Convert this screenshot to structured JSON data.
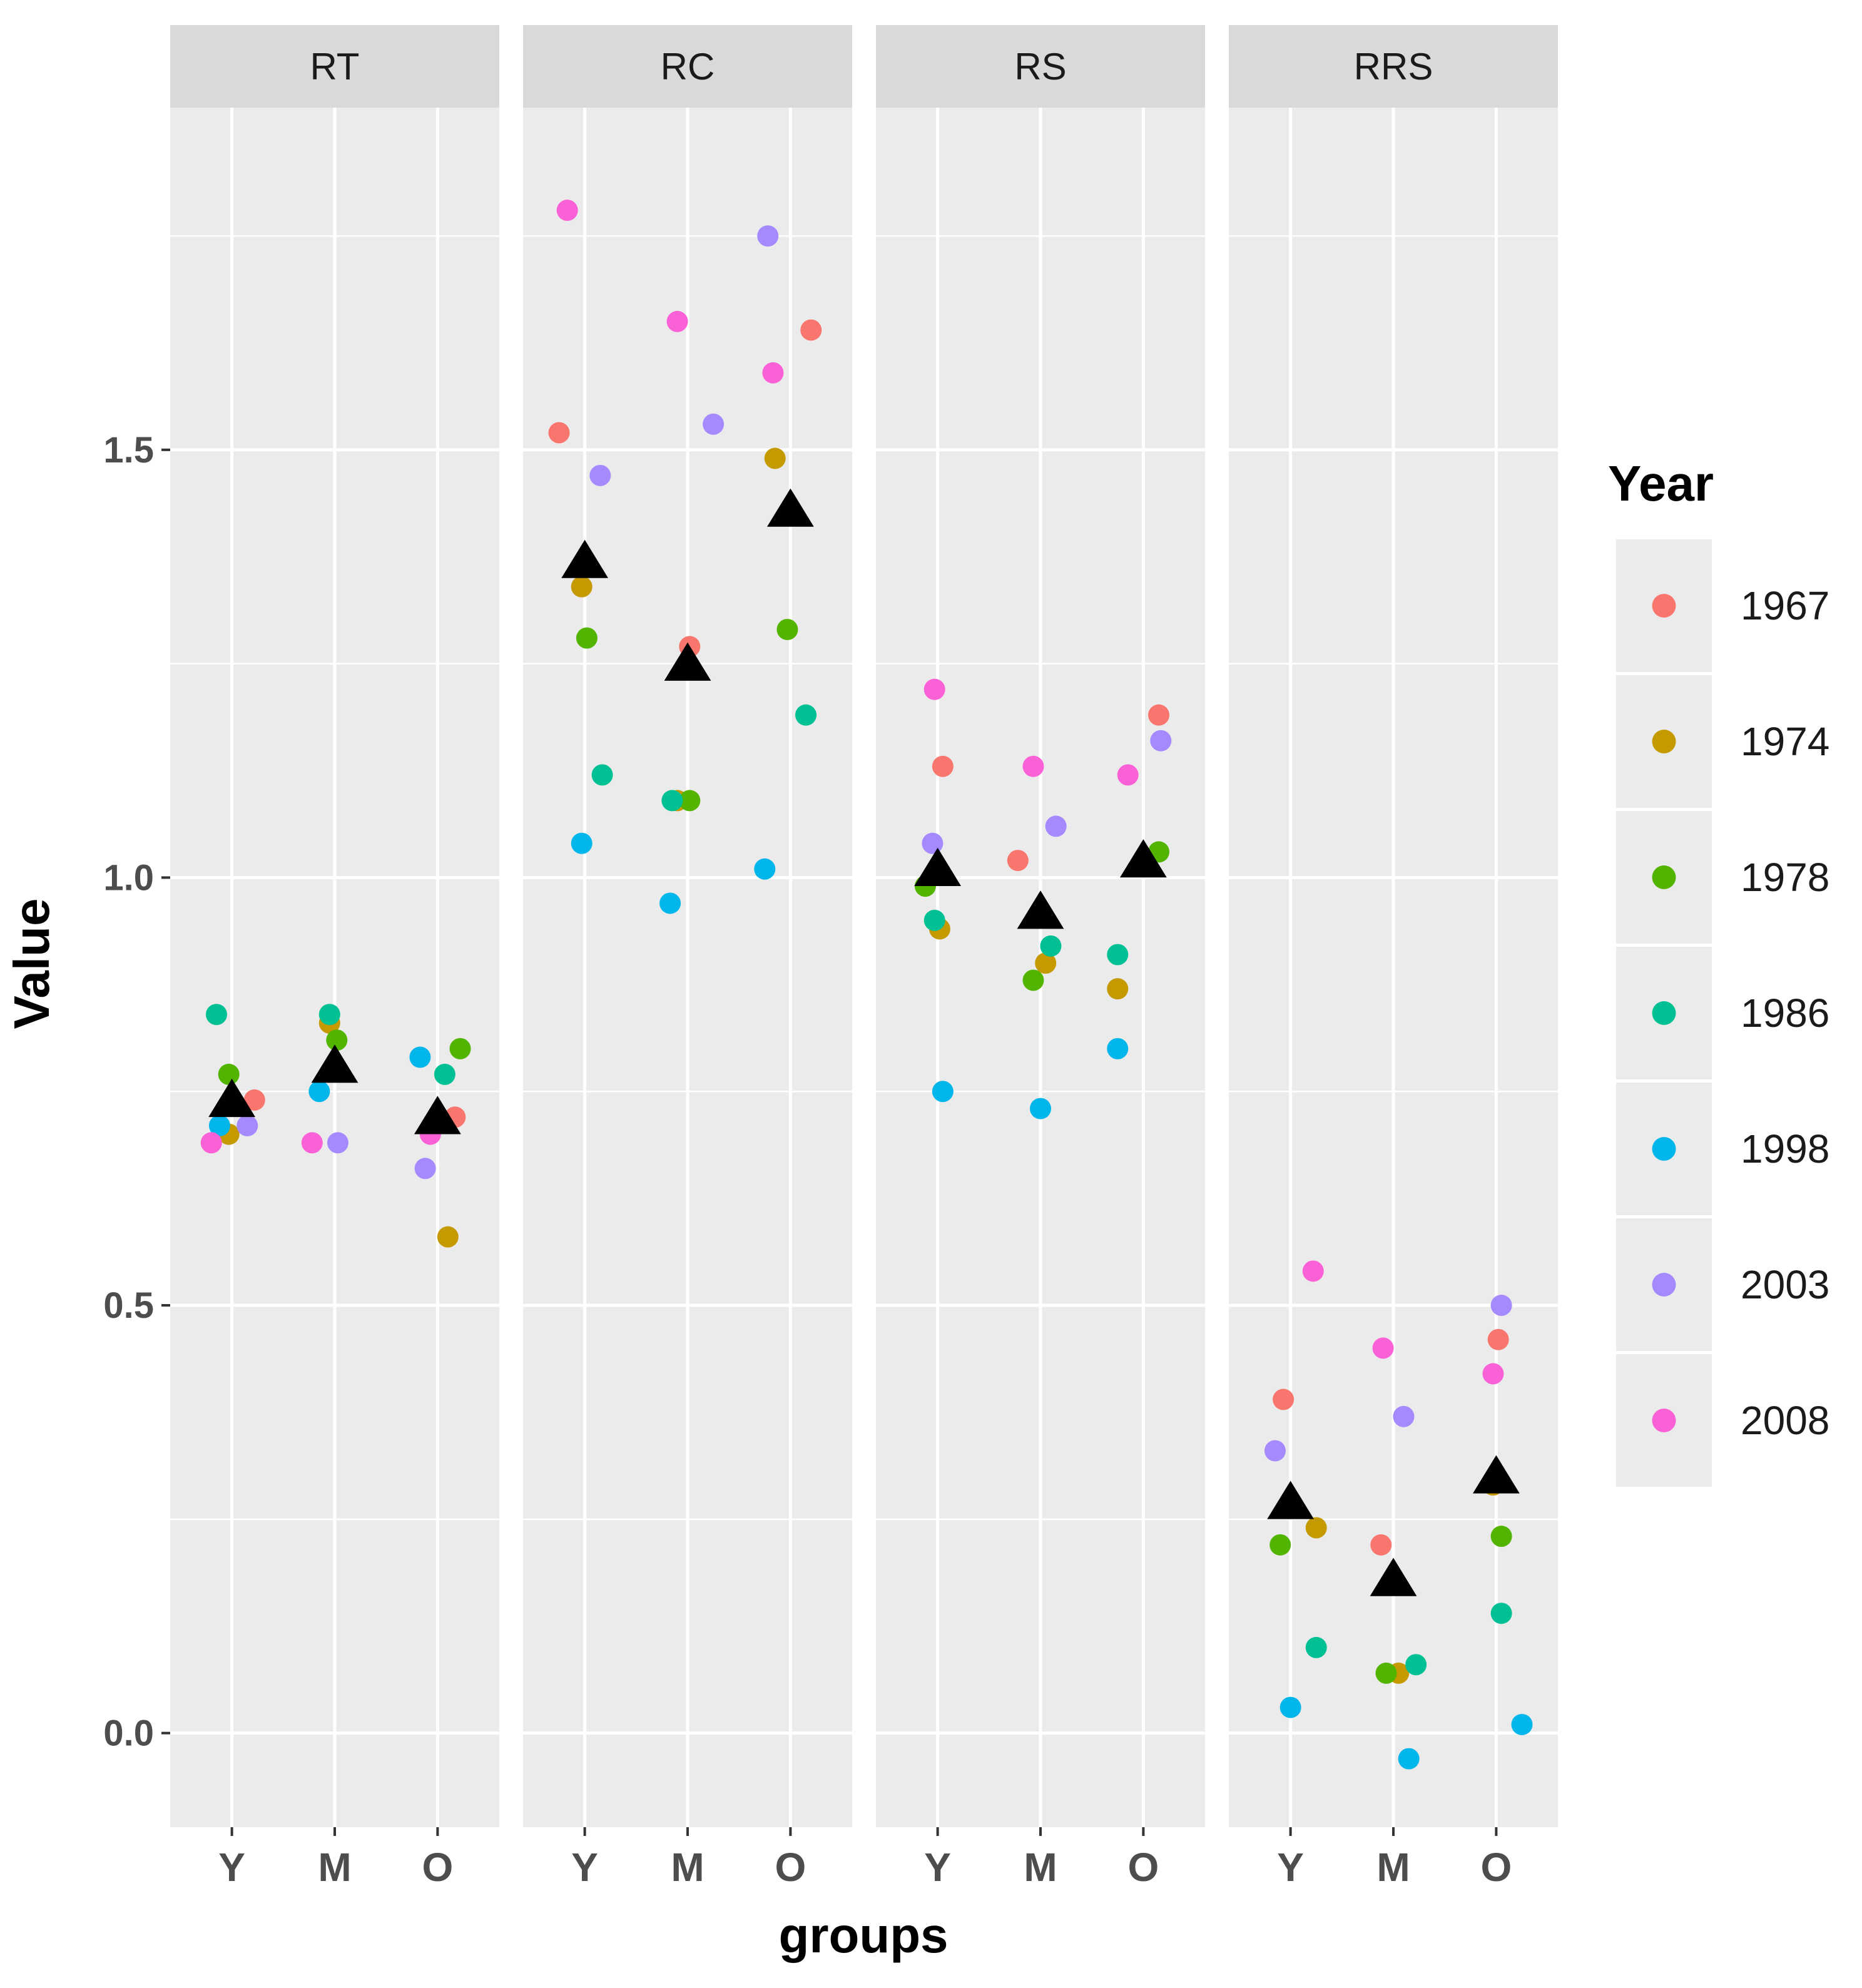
{
  "chart_data": {
    "type": "scatter",
    "facets": [
      "RT",
      "RC",
      "RS",
      "RRS"
    ],
    "x_categories": [
      "Y",
      "M",
      "O"
    ],
    "xlabel": "groups",
    "ylabel": "Value",
    "ylim": [
      -0.11,
      1.9
    ],
    "y_ticks": [
      0.0,
      0.5,
      1.0,
      1.5
    ],
    "y_tick_labels": [
      "0.0",
      "0.5",
      "1.0",
      "1.5"
    ],
    "grid": true,
    "legend": {
      "title": "Year",
      "position": "right",
      "entries": [
        {
          "name": "1967",
          "color": "#F8766D"
        },
        {
          "name": "1974",
          "color": "#C49A00"
        },
        {
          "name": "1978",
          "color": "#53B400"
        },
        {
          "name": "1986",
          "color": "#00C094"
        },
        {
          "name": "1998",
          "color": "#00B6EB"
        },
        {
          "name": "2003",
          "color": "#A58AFF"
        },
        {
          "name": "2008",
          "color": "#FB61D7"
        }
      ]
    },
    "points": {
      "RT": {
        "Y": [
          {
            "year": "1967",
            "x": 0.22,
            "y": 0.74
          },
          {
            "year": "1974",
            "x": -0.03,
            "y": 0.7
          },
          {
            "year": "1978",
            "x": -0.03,
            "y": 0.77
          },
          {
            "year": "1986",
            "x": -0.15,
            "y": 0.84
          },
          {
            "year": "1998",
            "x": -0.12,
            "y": 0.71
          },
          {
            "year": "2003",
            "x": 0.15,
            "y": 0.71
          },
          {
            "year": "2008",
            "x": -0.2,
            "y": 0.69
          }
        ],
        "M": [
          {
            "year": "1974",
            "x": -0.05,
            "y": 0.83
          },
          {
            "year": "1978",
            "x": 0.02,
            "y": 0.81
          },
          {
            "year": "1986",
            "x": -0.05,
            "y": 0.84
          },
          {
            "year": "1998",
            "x": -0.15,
            "y": 0.75
          },
          {
            "year": "2003",
            "x": 0.03,
            "y": 0.69
          },
          {
            "year": "2008",
            "x": -0.22,
            "y": 0.69
          }
        ],
        "O": [
          {
            "year": "1967",
            "x": 0.17,
            "y": 0.72
          },
          {
            "year": "1974",
            "x": 0.1,
            "y": 0.58
          },
          {
            "year": "1978",
            "x": 0.22,
            "y": 0.8
          },
          {
            "year": "1986",
            "x": 0.07,
            "y": 0.77
          },
          {
            "year": "1998",
            "x": -0.17,
            "y": 0.79
          },
          {
            "year": "2003",
            "x": -0.12,
            "y": 0.66
          },
          {
            "year": "2008",
            "x": -0.07,
            "y": 0.7
          }
        ]
      },
      "RC": {
        "Y": [
          {
            "year": "1967",
            "x": -0.25,
            "y": 1.52
          },
          {
            "year": "1974",
            "x": -0.03,
            "y": 1.34
          },
          {
            "year": "1978",
            "x": 0.02,
            "y": 1.28
          },
          {
            "year": "1986",
            "x": 0.17,
            "y": 1.12
          },
          {
            "year": "1998",
            "x": -0.03,
            "y": 1.04
          },
          {
            "year": "2003",
            "x": 0.15,
            "y": 1.47
          },
          {
            "year": "2008",
            "x": -0.17,
            "y": 1.78
          }
        ],
        "M": [
          {
            "year": "1967",
            "x": 0.02,
            "y": 1.27
          },
          {
            "year": "1974",
            "x": -0.1,
            "y": 1.09
          },
          {
            "year": "1978",
            "x": 0.02,
            "y": 1.09
          },
          {
            "year": "1986",
            "x": -0.15,
            "y": 1.09
          },
          {
            "year": "1998",
            "x": -0.17,
            "y": 0.97
          },
          {
            "year": "2003",
            "x": 0.25,
            "y": 1.53
          },
          {
            "year": "2008",
            "x": -0.1,
            "y": 1.65
          }
        ],
        "O": [
          {
            "year": "1967",
            "x": 0.2,
            "y": 1.64
          },
          {
            "year": "1974",
            "x": -0.15,
            "y": 1.49
          },
          {
            "year": "1978",
            "x": -0.03,
            "y": 1.29
          },
          {
            "year": "1986",
            "x": 0.15,
            "y": 1.19
          },
          {
            "year": "1998",
            "x": -0.25,
            "y": 1.01
          },
          {
            "year": "2003",
            "x": -0.22,
            "y": 1.75
          },
          {
            "year": "2008",
            "x": -0.17,
            "y": 1.59
          }
        ]
      },
      "RS": {
        "Y": [
          {
            "year": "1967",
            "x": 0.05,
            "y": 1.13
          },
          {
            "year": "1974",
            "x": 0.02,
            "y": 0.94
          },
          {
            "year": "1978",
            "x": -0.12,
            "y": 0.99
          },
          {
            "year": "1986",
            "x": -0.03,
            "y": 0.95
          },
          {
            "year": "1998",
            "x": 0.05,
            "y": 0.75
          },
          {
            "year": "2003",
            "x": -0.05,
            "y": 1.04
          },
          {
            "year": "2008",
            "x": -0.03,
            "y": 1.22
          }
        ],
        "M": [
          {
            "year": "1967",
            "x": -0.22,
            "y": 1.02
          },
          {
            "year": "1974",
            "x": 0.05,
            "y": 0.9
          },
          {
            "year": "1978",
            "x": -0.07,
            "y": 0.88
          },
          {
            "year": "1986",
            "x": 0.1,
            "y": 0.92
          },
          {
            "year": "1998",
            "x": 0.0,
            "y": 0.73
          },
          {
            "year": "2003",
            "x": 0.15,
            "y": 1.06
          },
          {
            "year": "2008",
            "x": -0.07,
            "y": 1.13
          }
        ],
        "O": [
          {
            "year": "1967",
            "x": 0.15,
            "y": 1.19
          },
          {
            "year": "1974",
            "x": -0.25,
            "y": 0.87
          },
          {
            "year": "1978",
            "x": 0.15,
            "y": 1.03
          },
          {
            "year": "1986",
            "x": -0.25,
            "y": 0.91
          },
          {
            "year": "1998",
            "x": -0.25,
            "y": 0.8
          },
          {
            "year": "2003",
            "x": 0.17,
            "y": 1.16
          },
          {
            "year": "2008",
            "x": -0.15,
            "y": 1.12
          }
        ]
      },
      "RRS": {
        "Y": [
          {
            "year": "1967",
            "x": -0.07,
            "y": 0.39
          },
          {
            "year": "1974",
            "x": 0.25,
            "y": 0.24
          },
          {
            "year": "1978",
            "x": -0.1,
            "y": 0.22
          },
          {
            "year": "1986",
            "x": 0.25,
            "y": 0.1
          },
          {
            "year": "1998",
            "x": 0.0,
            "y": 0.03
          },
          {
            "year": "2003",
            "x": -0.15,
            "y": 0.33
          },
          {
            "year": "2008",
            "x": 0.22,
            "y": 0.54
          }
        ],
        "M": [
          {
            "year": "1967",
            "x": -0.12,
            "y": 0.22
          },
          {
            "year": "1974",
            "x": 0.05,
            "y": 0.07
          },
          {
            "year": "1978",
            "x": -0.07,
            "y": 0.07
          },
          {
            "year": "1986",
            "x": 0.22,
            "y": 0.08
          },
          {
            "year": "1998",
            "x": 0.15,
            "y": -0.03
          },
          {
            "year": "2003",
            "x": 0.1,
            "y": 0.37
          },
          {
            "year": "2008",
            "x": -0.1,
            "y": 0.45
          }
        ],
        "O": [
          {
            "year": "1967",
            "x": 0.02,
            "y": 0.46
          },
          {
            "year": "1974",
            "x": -0.03,
            "y": 0.29
          },
          {
            "year": "1978",
            "x": 0.05,
            "y": 0.23
          },
          {
            "year": "1986",
            "x": 0.05,
            "y": 0.14
          },
          {
            "year": "1998",
            "x": 0.25,
            "y": 0.01
          },
          {
            "year": "2003",
            "x": 0.05,
            "y": 0.5
          },
          {
            "year": "2008",
            "x": -0.03,
            "y": 0.42
          }
        ]
      }
    },
    "means": {
      "RT": {
        "Y": 0.74,
        "M": 0.78,
        "O": 0.72
      },
      "RC": {
        "Y": 1.37,
        "M": 1.25,
        "O": 1.43
      },
      "RS": {
        "Y": 1.01,
        "M": 0.96,
        "O": 1.02
      },
      "RRS": {
        "Y": 0.27,
        "M": 0.18,
        "O": 0.3
      }
    }
  }
}
